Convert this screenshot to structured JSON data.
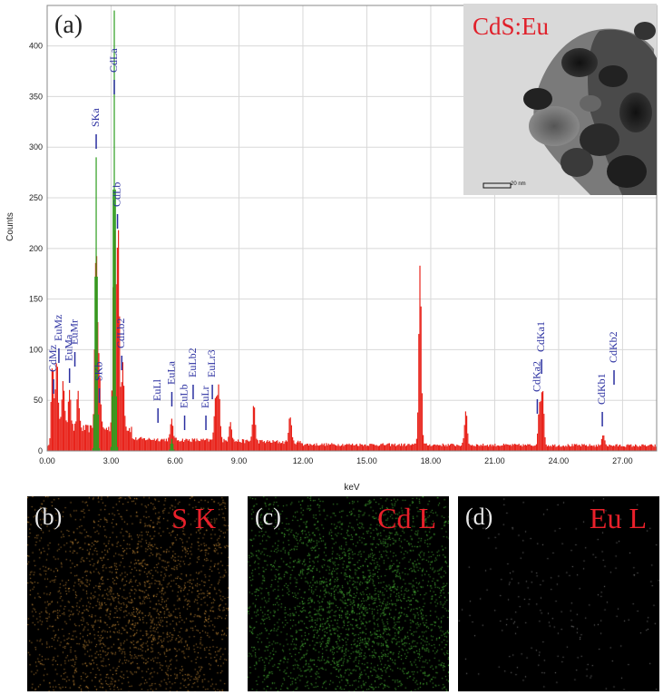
{
  "panel_a_label": "(a)",
  "inset": {
    "title": "CdS:Eu",
    "scale_label": "20 nm"
  },
  "chart_data": {
    "type": "bar",
    "title": "",
    "xlabel": "keV",
    "ylabel": "Counts",
    "xlim": [
      0,
      28.6
    ],
    "ylim": [
      0,
      440
    ],
    "x_ticks": [
      "0.00",
      "3.00",
      "6.00",
      "9.00",
      "12.00",
      "15.00",
      "18.00",
      "21.00",
      "24.00",
      "27.00"
    ],
    "y_ticks": [
      "0",
      "50",
      "100",
      "150",
      "200",
      "250",
      "300",
      "350",
      "400"
    ],
    "grid": true,
    "series": [
      {
        "color": "#e8231b",
        "peaks": [
          {
            "x": 0.25,
            "y": 60
          },
          {
            "x": 0.45,
            "y": 70
          },
          {
            "x": 0.75,
            "y": 50
          },
          {
            "x": 1.05,
            "y": 42
          },
          {
            "x": 1.45,
            "y": 34
          },
          {
            "x": 2.3,
            "y": 180
          },
          {
            "x": 2.45,
            "y": 55
          },
          {
            "x": 3.15,
            "y": 230
          },
          {
            "x": 3.33,
            "y": 200
          },
          {
            "x": 3.55,
            "y": 65
          },
          {
            "x": 5.85,
            "y": 20
          },
          {
            "x": 7.9,
            "y": 40
          },
          {
            "x": 8.05,
            "y": 55
          },
          {
            "x": 8.6,
            "y": 20
          },
          {
            "x": 9.7,
            "y": 37
          },
          {
            "x": 11.4,
            "y": 27
          },
          {
            "x": 17.5,
            "y": 178
          },
          {
            "x": 19.65,
            "y": 35
          },
          {
            "x": 23.1,
            "y": 40
          },
          {
            "x": 23.25,
            "y": 55
          },
          {
            "x": 26.1,
            "y": 12
          }
        ]
      },
      {
        "color": "#2e9e1f",
        "peaks": [
          {
            "x": 2.3,
            "y": 290
          },
          {
            "x": 3.15,
            "y": 435
          },
          {
            "x": 5.85,
            "y": 12
          }
        ]
      }
    ],
    "annotations": [
      {
        "text": "CdMz",
        "x": 0.3
      },
      {
        "text": "EuMz",
        "x": 0.55
      },
      {
        "text": "EuMa",
        "x": 1.05
      },
      {
        "text": "EuMr",
        "x": 1.3
      },
      {
        "text": "SKa",
        "x": 2.3
      },
      {
        "text": "SKb",
        "x": 2.45
      },
      {
        "text": "CdLa",
        "x": 3.15
      },
      {
        "text": "CdLb",
        "x": 3.3
      },
      {
        "text": "CdLb2",
        "x": 3.5
      },
      {
        "text": "EuLl",
        "x": 5.2
      },
      {
        "text": "EuLa",
        "x": 5.85
      },
      {
        "text": "EuLb",
        "x": 6.45
      },
      {
        "text": "EuLb2",
        "x": 6.85
      },
      {
        "text": "EuLr",
        "x": 7.45
      },
      {
        "text": "EuLr3",
        "x": 7.75
      },
      {
        "text": "CdKa2",
        "x": 23.0
      },
      {
        "text": "CdKa1",
        "x": 23.2
      },
      {
        "text": "CdKb1",
        "x": 26.05
      },
      {
        "text": "CdKb2",
        "x": 26.6
      }
    ]
  },
  "maps": [
    {
      "letter": "(b)",
      "title": "S K",
      "dot_color": "#d4943a",
      "density": 0.3
    },
    {
      "letter": "(c)",
      "title": "Cd L",
      "dot_color": "#4fc43a",
      "density": 0.4
    },
    {
      "letter": "(d)",
      "title": "Eu L",
      "dot_color": "#8a8a8a",
      "density": 0.03
    }
  ]
}
